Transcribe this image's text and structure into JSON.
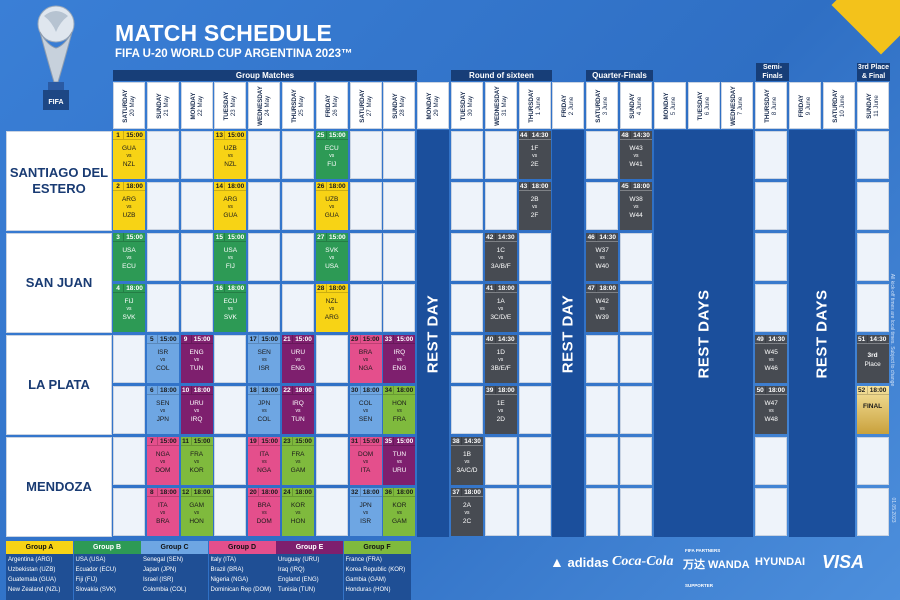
{
  "header": {
    "title": "MATCH SCHEDULE",
    "subtitle": "FIFA U-20 WORLD CUP ARGENTINA 2023™",
    "trophy_label": "FIFA"
  },
  "sections": {
    "group": "Group Matches",
    "r16": "Round of sixteen",
    "qf": "Quarter-Finals",
    "sf1": "Semi-",
    "sf2": "Finals",
    "fin1": "3rd Place",
    "fin2": "& Final"
  },
  "dates": [
    {
      "day": "SATURDAY",
      "date": "20 May"
    },
    {
      "day": "SUNDAY",
      "date": "21 May"
    },
    {
      "day": "MONDAY",
      "date": "22 May"
    },
    {
      "day": "TUESDAY",
      "date": "23 May"
    },
    {
      "day": "WEDNESDAY",
      "date": "24 May"
    },
    {
      "day": "THURSDAY",
      "date": "25 May"
    },
    {
      "day": "FRIDAY",
      "date": "26 May"
    },
    {
      "day": "SATURDAY",
      "date": "27 May"
    },
    {
      "day": "SUNDAY",
      "date": "28 May"
    },
    {
      "day": "MONDAY",
      "date": "29 May"
    },
    {
      "day": "TUESDAY",
      "date": "30 May"
    },
    {
      "day": "WEDNESDAY",
      "date": "31 May"
    },
    {
      "day": "THURSDAY",
      "date": "1 June"
    },
    {
      "day": "FRIDAY",
      "date": "2 June"
    },
    {
      "day": "SATURDAY",
      "date": "3 June"
    },
    {
      "day": "SUNDAY",
      "date": "4 June"
    },
    {
      "day": "MONDAY",
      "date": "5 June"
    },
    {
      "day": "TUESDAY",
      "date": "6 June"
    },
    {
      "day": "WEDNESDAY",
      "date": "7 June"
    },
    {
      "day": "THURSDAY",
      "date": "8 June"
    },
    {
      "day": "FRIDAY",
      "date": "9 June"
    },
    {
      "day": "SATURDAY",
      "date": "10 June"
    },
    {
      "day": "SUNDAY",
      "date": "11 June"
    }
  ],
  "venues": [
    "SANTIAGO DEL ESTERO",
    "SAN JUAN",
    "LA PLATA",
    "MENDOZA"
  ],
  "rest_labels": {
    "single": "REST DAY",
    "multi": "REST DAYS"
  },
  "matches": [
    {
      "col": 0,
      "row": 0,
      "num": "1",
      "time": "15:00",
      "a": "GUA",
      "b": "NZL",
      "g": "A"
    },
    {
      "col": 3,
      "row": 0,
      "num": "13",
      "time": "15:00",
      "a": "UZB",
      "b": "NZL",
      "g": "A"
    },
    {
      "col": 6,
      "row": 0,
      "num": "25",
      "time": "15:00",
      "a": "ECU",
      "b": "FIJ",
      "g": "B"
    },
    {
      "col": 12,
      "row": 0,
      "num": "44",
      "time": "14:30",
      "a": "1F",
      "b": "2E",
      "g": "K"
    },
    {
      "col": 15,
      "row": 0,
      "num": "48",
      "time": "14:30",
      "a": "W43",
      "b": "W41",
      "g": "K"
    },
    {
      "col": 0,
      "row": 1,
      "num": "2",
      "time": "18:00",
      "a": "ARG",
      "b": "UZB",
      "g": "A"
    },
    {
      "col": 3,
      "row": 1,
      "num": "14",
      "time": "18:00",
      "a": "ARG",
      "b": "GUA",
      "g": "A"
    },
    {
      "col": 6,
      "row": 1,
      "num": "26",
      "time": "18:00",
      "a": "UZB",
      "b": "GUA",
      "g": "A"
    },
    {
      "col": 12,
      "row": 1,
      "num": "43",
      "time": "18:00",
      "a": "2B",
      "b": "2F",
      "g": "K"
    },
    {
      "col": 15,
      "row": 1,
      "num": "45",
      "time": "18:00",
      "a": "W38",
      "b": "W44",
      "g": "K"
    },
    {
      "col": 0,
      "row": 2,
      "num": "3",
      "time": "15:00",
      "a": "USA",
      "b": "ECU",
      "g": "B"
    },
    {
      "col": 3,
      "row": 2,
      "num": "15",
      "time": "15:00",
      "a": "USA",
      "b": "FIJ",
      "g": "B"
    },
    {
      "col": 6,
      "row": 2,
      "num": "27",
      "time": "15:00",
      "a": "SVK",
      "b": "USA",
      "g": "B"
    },
    {
      "col": 11,
      "row": 2,
      "num": "42",
      "time": "14:30",
      "a": "1C",
      "b": "3A/B/F",
      "g": "K"
    },
    {
      "col": 14,
      "row": 2,
      "num": "46",
      "time": "14:30",
      "a": "W37",
      "b": "W40",
      "g": "K"
    },
    {
      "col": 0,
      "row": 3,
      "num": "4",
      "time": "18:00",
      "a": "FIJ",
      "b": "SVK",
      "g": "B"
    },
    {
      "col": 3,
      "row": 3,
      "num": "16",
      "time": "18:00",
      "a": "ECU",
      "b": "SVK",
      "g": "B"
    },
    {
      "col": 6,
      "row": 3,
      "num": "28",
      "time": "18:00",
      "a": "NZL",
      "b": "ARG",
      "g": "A"
    },
    {
      "col": 11,
      "row": 3,
      "num": "41",
      "time": "18:00",
      "a": "1A",
      "b": "3C/D/E",
      "g": "K"
    },
    {
      "col": 14,
      "row": 3,
      "num": "47",
      "time": "18:00",
      "a": "W42",
      "b": "W39",
      "g": "K"
    },
    {
      "col": 1,
      "row": 4,
      "num": "5",
      "time": "15:00",
      "a": "ISR",
      "b": "COL",
      "g": "C"
    },
    {
      "col": 2,
      "row": 4,
      "num": "9",
      "time": "15:00",
      "a": "ENG",
      "b": "TUN",
      "g": "E"
    },
    {
      "col": 4,
      "row": 4,
      "num": "17",
      "time": "15:00",
      "a": "SEN",
      "b": "ISR",
      "g": "C"
    },
    {
      "col": 5,
      "row": 4,
      "num": "21",
      "time": "15:00",
      "a": "URU",
      "b": "ENG",
      "g": "E"
    },
    {
      "col": 7,
      "row": 4,
      "num": "29",
      "time": "15:00",
      "a": "BRA",
      "b": "NGA",
      "g": "D"
    },
    {
      "col": 8,
      "row": 4,
      "num": "33",
      "time": "15:00",
      "a": "IRQ",
      "b": "ENG",
      "g": "E"
    },
    {
      "col": 11,
      "row": 4,
      "num": "40",
      "time": "14:30",
      "a": "1D",
      "b": "3B/E/F",
      "g": "K"
    },
    {
      "col": 19,
      "row": 4,
      "num": "49",
      "time": "14:30",
      "a": "W45",
      "b": "W46",
      "g": "K"
    },
    {
      "col": 22,
      "row": 4,
      "num": "51",
      "time": "14:30",
      "a": "3rd",
      "b": "Place",
      "g": "K",
      "single": true
    },
    {
      "col": 1,
      "row": 5,
      "num": "6",
      "time": "18:00",
      "a": "SEN",
      "b": "JPN",
      "g": "C"
    },
    {
      "col": 2,
      "row": 5,
      "num": "10",
      "time": "18:00",
      "a": "URU",
      "b": "IRQ",
      "g": "E"
    },
    {
      "col": 4,
      "row": 5,
      "num": "18",
      "time": "18:00",
      "a": "JPN",
      "b": "COL",
      "g": "C"
    },
    {
      "col": 5,
      "row": 5,
      "num": "22",
      "time": "18:00",
      "a": "IRQ",
      "b": "TUN",
      "g": "E"
    },
    {
      "col": 7,
      "row": 5,
      "num": "30",
      "time": "18:00",
      "a": "COL",
      "b": "SEN",
      "g": "C"
    },
    {
      "col": 8,
      "row": 5,
      "num": "34",
      "time": "18:00",
      "a": "HON",
      "b": "FRA",
      "g": "F"
    },
    {
      "col": 11,
      "row": 5,
      "num": "39",
      "time": "18:00",
      "a": "1E",
      "b": "2D",
      "g": "K"
    },
    {
      "col": 19,
      "row": 5,
      "num": "50",
      "time": "18:00",
      "a": "W47",
      "b": "W48",
      "g": "K"
    },
    {
      "col": 22,
      "row": 5,
      "num": "52",
      "time": "18:00",
      "a": "FINAL",
      "b": "",
      "g": "FIN",
      "single": true
    },
    {
      "col": 1,
      "row": 6,
      "num": "7",
      "time": "15:00",
      "a": "NGA",
      "b": "DOM",
      "g": "D"
    },
    {
      "col": 2,
      "row": 6,
      "num": "11",
      "time": "15:00",
      "a": "FRA",
      "b": "KOR",
      "g": "F"
    },
    {
      "col": 4,
      "row": 6,
      "num": "19",
      "time": "15:00",
      "a": "ITA",
      "b": "NGA",
      "g": "D"
    },
    {
      "col": 5,
      "row": 6,
      "num": "23",
      "time": "15:00",
      "a": "FRA",
      "b": "GAM",
      "g": "F"
    },
    {
      "col": 7,
      "row": 6,
      "num": "31",
      "time": "15:00",
      "a": "DOM",
      "b": "ITA",
      "g": "D"
    },
    {
      "col": 8,
      "row": 6,
      "num": "35",
      "time": "15:00",
      "a": "TUN",
      "b": "URU",
      "g": "E"
    },
    {
      "col": 10,
      "row": 6,
      "num": "38",
      "time": "14:30",
      "a": "1B",
      "b": "3A/C/D",
      "g": "K"
    },
    {
      "col": 1,
      "row": 7,
      "num": "8",
      "time": "18:00",
      "a": "ITA",
      "b": "BRA",
      "g": "D"
    },
    {
      "col": 2,
      "row": 7,
      "num": "12",
      "time": "18:00",
      "a": "GAM",
      "b": "HON",
      "g": "F"
    },
    {
      "col": 4,
      "row": 7,
      "num": "20",
      "time": "18:00",
      "a": "BRA",
      "b": "DOM",
      "g": "D"
    },
    {
      "col": 5,
      "row": 7,
      "num": "24",
      "time": "18:00",
      "a": "KOR",
      "b": "HON",
      "g": "F"
    },
    {
      "col": 7,
      "row": 7,
      "num": "32",
      "time": "18:00",
      "a": "JPN",
      "b": "ISR",
      "g": "C"
    },
    {
      "col": 8,
      "row": 7,
      "num": "36",
      "time": "18:00",
      "a": "KOR",
      "b": "GAM",
      "g": "F"
    },
    {
      "col": 10,
      "row": 7,
      "num": "37",
      "time": "18:00",
      "a": "2A",
      "b": "2C",
      "g": "K"
    }
  ],
  "groups": [
    {
      "name": "Group A",
      "g": "A",
      "teams": [
        "Argentina (ARG)",
        "Uzbekistan (UZB)",
        "Guatemala (GUA)",
        "New Zealand (NZL)"
      ]
    },
    {
      "name": "Group B",
      "g": "B",
      "teams": [
        "USA (USA)",
        "Ecuador (ECU)",
        "Fiji (FIJ)",
        "Slovakia (SVK)"
      ]
    },
    {
      "name": "Group C",
      "g": "C",
      "teams": [
        "Senegal (SEN)",
        "Japan (JPN)",
        "Israel (ISR)",
        "Colombia (COL)"
      ]
    },
    {
      "name": "Group D",
      "g": "D",
      "teams": [
        "Italy (ITA)",
        "Brazil (BRA)",
        "Nigeria (NGA)",
        "Dominican Rep (DOM)"
      ]
    },
    {
      "name": "Group E",
      "g": "E",
      "teams": [
        "Uruguay (URU)",
        "Iraq (IRQ)",
        "England (ENG)",
        "Tunisia (TUN)"
      ]
    },
    {
      "name": "Group F",
      "g": "F",
      "teams": [
        "France (FRA)",
        "Korea Republic (KOR)",
        "Gambia (GAM)",
        "Honduras (HON)"
      ]
    }
  ],
  "sponsors": {
    "partners_label": "FIFA PARTNERS",
    "supporter_label": "SUPPORTER",
    "brands": [
      "adidas",
      "Coca-Cola",
      "万达 WANDA",
      "HYUNDAI",
      "VISA"
    ]
  },
  "side_note": "All kick-off times are local times. Subject to change",
  "copyright": "© FIFA",
  "version": "01.05.2023",
  "colors": {
    "A": "#f7d315",
    "B": "#2d9a55",
    "C": "#6ea6e3",
    "D": "#e44f8c",
    "E": "#7e1f6e",
    "F": "#7fba3d",
    "K": "#474b52"
  }
}
